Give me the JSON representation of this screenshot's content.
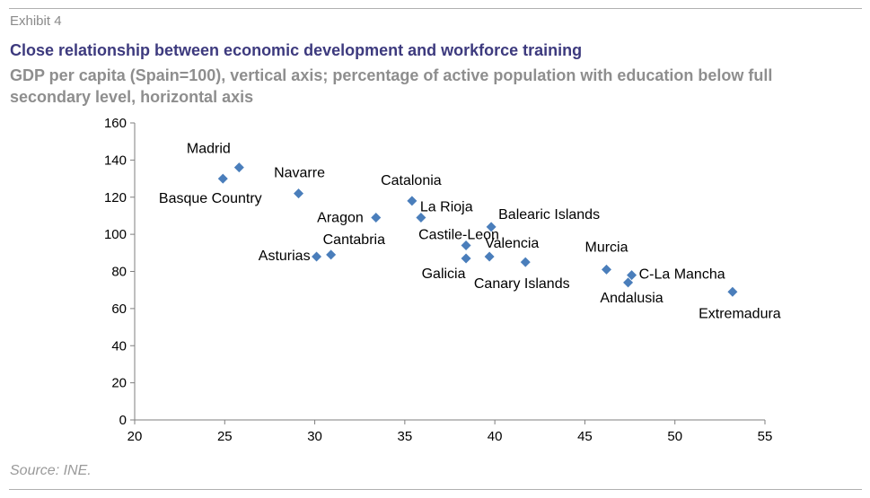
{
  "header": {
    "exhibit": "Exhibit 4",
    "title": "Close relationship between economic development and workforce training",
    "subtitle": "GDP per capita (Spain=100), vertical axis; percentage of active population with education below full secondary level, horizontal axis"
  },
  "footer": {
    "source": "Source: INE."
  },
  "colors": {
    "marker": "#4a7ebb",
    "title": "#3d3a7e",
    "subtitle": "#8e8e8e",
    "axis": "#7f7f7f",
    "label": "#000000"
  },
  "chart_data": {
    "type": "scatter",
    "title": "",
    "xlabel": "",
    "ylabel": "",
    "xlim": [
      20,
      55
    ],
    "ylim": [
      0,
      160
    ],
    "xticks": [
      20,
      25,
      30,
      35,
      40,
      45,
      50,
      55
    ],
    "yticks": [
      0,
      20,
      40,
      60,
      80,
      100,
      120,
      140,
      160
    ],
    "grid": false,
    "legend": "none",
    "marker": "diamond",
    "points": [
      {
        "label": "Madrid",
        "x": 25.8,
        "y": 136
      },
      {
        "label": "Basque Country",
        "x": 24.9,
        "y": 130
      },
      {
        "label": "Navarre",
        "x": 29.1,
        "y": 122
      },
      {
        "label": "Catalonia",
        "x": 35.4,
        "y": 118
      },
      {
        "label": "Aragon",
        "x": 33.4,
        "y": 109
      },
      {
        "label": "La Rioja",
        "x": 35.9,
        "y": 109
      },
      {
        "label": "Balearic Islands",
        "x": 39.8,
        "y": 104
      },
      {
        "label": "Castile-Leon",
        "x": 38.4,
        "y": 94
      },
      {
        "label": "Cantabria",
        "x": 30.9,
        "y": 89
      },
      {
        "label": "Asturias",
        "x": 30.1,
        "y": 88
      },
      {
        "label": "Valencia",
        "x": 39.7,
        "y": 88
      },
      {
        "label": "Galicia",
        "x": 38.4,
        "y": 87
      },
      {
        "label": "Canary Islands",
        "x": 41.7,
        "y": 85
      },
      {
        "label": "Murcia",
        "x": 46.2,
        "y": 81
      },
      {
        "label": "C-La Mancha",
        "x": 47.6,
        "y": 78
      },
      {
        "label": "Andalusia",
        "x": 47.4,
        "y": 74
      },
      {
        "label": "Extremadura",
        "x": 53.2,
        "y": 69
      }
    ]
  }
}
